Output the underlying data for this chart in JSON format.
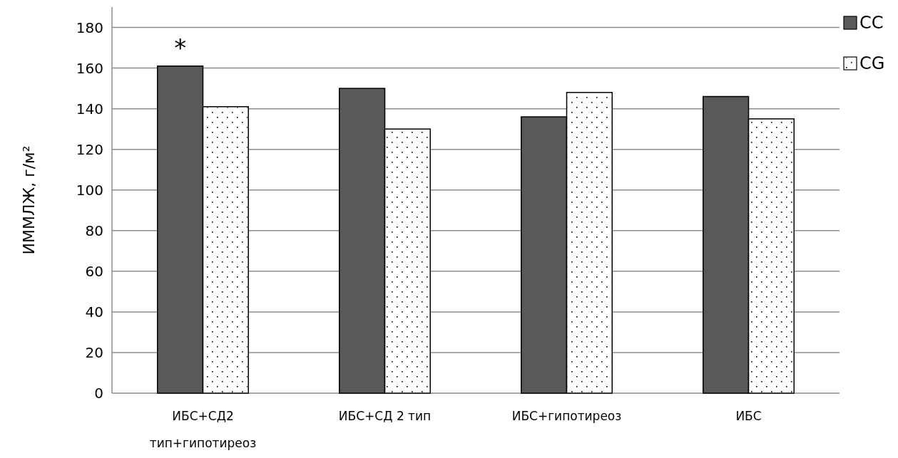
{
  "chart_data": {
    "type": "bar",
    "ylabel": "ИММЛЖ, г/м²",
    "categories": [
      "ИБС+СД2 тип+гипотиреоз",
      "ИБС+СД 2 тип",
      "ИБС+гипотиреоз",
      "ИБС"
    ],
    "series": [
      {
        "name": "CC",
        "color": "#595959",
        "values": [
          161,
          150,
          136,
          146
        ]
      },
      {
        "name": "CG",
        "color": "#ffffff",
        "values": [
          141,
          130,
          148,
          135
        ]
      }
    ],
    "ylim": [
      0,
      190
    ],
    "yticks": [
      0,
      20,
      40,
      60,
      80,
      100,
      120,
      140,
      160,
      180
    ],
    "grid": "y",
    "legend": "top right",
    "annotations": [
      "*"
    ]
  }
}
